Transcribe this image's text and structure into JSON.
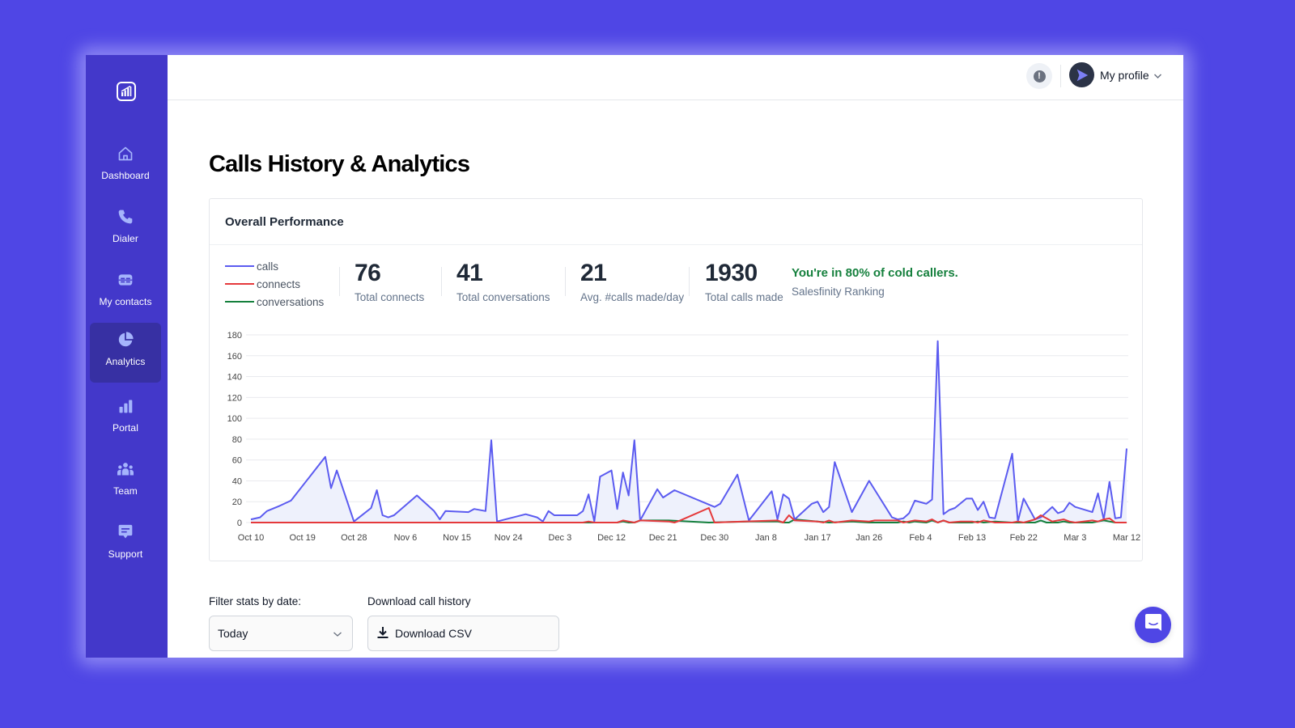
{
  "sidebar": {
    "logo": "salesfinity-logo",
    "items": [
      {
        "label": "Dashboard",
        "icon": "home-icon",
        "active": false
      },
      {
        "label": "Dialer",
        "icon": "phone-icon",
        "active": false
      },
      {
        "label": "My contacts",
        "icon": "contacts-icon",
        "active": false
      },
      {
        "label": "Analytics",
        "icon": "pie-chart-icon",
        "active": true
      },
      {
        "label": "Portal",
        "icon": "bar-chart-icon",
        "active": false
      },
      {
        "label": "Team",
        "icon": "team-icon",
        "active": false
      },
      {
        "label": "Support",
        "icon": "chat-icon",
        "active": false
      }
    ]
  },
  "header": {
    "alert_icon": "!",
    "profile_label": "My profile"
  },
  "page": {
    "title": "Calls History & Analytics"
  },
  "card": {
    "title": "Overall Performance",
    "legend": [
      {
        "label": "calls",
        "color": "#5B5BF0"
      },
      {
        "label": "connects",
        "color": "#E5393B"
      },
      {
        "label": "conversations",
        "color": "#15803D"
      }
    ],
    "stats": [
      {
        "value": "76",
        "caption": "Total connects"
      },
      {
        "value": "41",
        "caption": "Total conversations"
      },
      {
        "value": "21",
        "caption": "Avg. #calls made/day"
      },
      {
        "value": "1930",
        "caption": "Total calls made"
      }
    ],
    "ranking": {
      "message": "You're in 80% of cold callers.",
      "subtitle": "Salesfinity Ranking"
    }
  },
  "filters": {
    "date_label": "Filter stats by date:",
    "date_value": "Today",
    "download_label": "Download call history",
    "download_button": "Download CSV"
  },
  "chart_data": {
    "type": "line",
    "title": "Overall Performance",
    "xlabel": "",
    "ylabel": "",
    "ylim": [
      0,
      180
    ],
    "yticks": [
      0,
      20,
      40,
      60,
      80,
      100,
      120,
      140,
      160,
      180
    ],
    "xticks": [
      "Oct 10",
      "Oct 19",
      "Oct 28",
      "Nov 6",
      "Nov 15",
      "Nov 24",
      "Dec 3",
      "Dec 12",
      "Dec 21",
      "Dec 30",
      "Jan 8",
      "Jan 17",
      "Jan 26",
      "Feb 4",
      "Feb 13",
      "Feb 22",
      "Mar 3",
      "Mar 12"
    ],
    "grid": true,
    "legend_position": "top-left",
    "x_unit": "days since Oct 10",
    "series": [
      {
        "name": "calls",
        "color": "#5B5BF0",
        "fill": "#EEF1FC",
        "points": [
          [
            0,
            3
          ],
          [
            1.6,
            5
          ],
          [
            2.8,
            11
          ],
          [
            5,
            16
          ],
          [
            7,
            21
          ],
          [
            13,
            63
          ],
          [
            14,
            33
          ],
          [
            15,
            50
          ],
          [
            18,
            1
          ],
          [
            21,
            14
          ],
          [
            22,
            31
          ],
          [
            23,
            7
          ],
          [
            24,
            5
          ],
          [
            25,
            7
          ],
          [
            29,
            26
          ],
          [
            32,
            11
          ],
          [
            33,
            3
          ],
          [
            34,
            11
          ],
          [
            38,
            10
          ],
          [
            39,
            13
          ],
          [
            41,
            11
          ],
          [
            42,
            79
          ],
          [
            43,
            1
          ],
          [
            48,
            8
          ],
          [
            50,
            5
          ],
          [
            51,
            1
          ],
          [
            52,
            11
          ],
          [
            53,
            7
          ],
          [
            57,
            7
          ],
          [
            58,
            11
          ],
          [
            59,
            27
          ],
          [
            60,
            1
          ],
          [
            61,
            44
          ],
          [
            63,
            50
          ],
          [
            64,
            13
          ],
          [
            65,
            48
          ],
          [
            66,
            26
          ],
          [
            67,
            79
          ],
          [
            68,
            2
          ],
          [
            71,
            32
          ],
          [
            72,
            24
          ],
          [
            74,
            31
          ],
          [
            81,
            15
          ],
          [
            82,
            18
          ],
          [
            85,
            46
          ],
          [
            87,
            2
          ],
          [
            91,
            30
          ],
          [
            92,
            3
          ],
          [
            93,
            27
          ],
          [
            94,
            23
          ],
          [
            95,
            3
          ],
          [
            98,
            18
          ],
          [
            99,
            20
          ],
          [
            100,
            10
          ],
          [
            101,
            15
          ],
          [
            102,
            58
          ],
          [
            105,
            10
          ],
          [
            108,
            40
          ],
          [
            112,
            5
          ],
          [
            113,
            3
          ],
          [
            114,
            4
          ],
          [
            115,
            9
          ],
          [
            116,
            21
          ],
          [
            118,
            18
          ],
          [
            119,
            22
          ],
          [
            120,
            174
          ],
          [
            121,
            8
          ],
          [
            122,
            12
          ],
          [
            123,
            14
          ],
          [
            125,
            23
          ],
          [
            126,
            23
          ],
          [
            127,
            12
          ],
          [
            128,
            20
          ],
          [
            129,
            5
          ],
          [
            130,
            4
          ],
          [
            133,
            66
          ],
          [
            134,
            1
          ],
          [
            135,
            23
          ],
          [
            137,
            3
          ],
          [
            138,
            5
          ],
          [
            140,
            15
          ],
          [
            141,
            9
          ],
          [
            142,
            11
          ],
          [
            143,
            19
          ],
          [
            144,
            15
          ],
          [
            147,
            10
          ],
          [
            148,
            28
          ],
          [
            149,
            3
          ],
          [
            150,
            39
          ],
          [
            151,
            4
          ],
          [
            152,
            5
          ],
          [
            153,
            71
          ]
        ]
      },
      {
        "name": "connects",
        "color": "#E5393B",
        "points": [
          [
            0,
            0
          ],
          [
            40,
            0
          ],
          [
            58,
            0
          ],
          [
            59,
            1
          ],
          [
            60,
            0
          ],
          [
            64,
            0
          ],
          [
            65,
            2
          ],
          [
            66,
            1
          ],
          [
            67,
            0
          ],
          [
            68,
            2
          ],
          [
            73,
            1
          ],
          [
            74,
            0
          ],
          [
            75,
            2
          ],
          [
            80,
            14
          ],
          [
            81,
            0
          ],
          [
            86,
            1
          ],
          [
            92,
            2
          ],
          [
            93,
            0
          ],
          [
            94,
            7
          ],
          [
            95,
            2
          ],
          [
            99,
            1
          ],
          [
            100,
            0
          ],
          [
            101,
            2
          ],
          [
            102,
            0
          ],
          [
            105,
            2
          ],
          [
            108,
            1
          ],
          [
            109,
            2
          ],
          [
            113,
            2
          ],
          [
            114,
            0
          ],
          [
            115,
            1
          ],
          [
            116,
            2
          ],
          [
            118,
            1
          ],
          [
            119,
            3
          ],
          [
            120,
            0
          ],
          [
            121,
            2
          ],
          [
            122,
            0
          ],
          [
            124,
            1
          ],
          [
            126,
            1
          ],
          [
            127,
            0
          ],
          [
            128,
            2
          ],
          [
            129,
            1
          ],
          [
            130,
            0
          ],
          [
            133,
            0
          ],
          [
            134,
            1
          ],
          [
            135,
            0
          ],
          [
            137,
            3
          ],
          [
            138,
            7
          ],
          [
            139,
            4
          ],
          [
            140,
            1
          ],
          [
            141,
            2
          ],
          [
            142,
            3
          ],
          [
            143,
            1
          ],
          [
            144,
            0
          ],
          [
            147,
            2
          ],
          [
            148,
            1
          ],
          [
            149,
            3
          ],
          [
            150,
            4
          ],
          [
            151,
            0
          ],
          [
            153,
            0
          ]
        ]
      },
      {
        "name": "conversations",
        "color": "#15803D",
        "points": [
          [
            0,
            0
          ],
          [
            58,
            0
          ],
          [
            60,
            0
          ],
          [
            64,
            0
          ],
          [
            65,
            1
          ],
          [
            66,
            0
          ],
          [
            67,
            0
          ],
          [
            68,
            2
          ],
          [
            73,
            2
          ],
          [
            80,
            0
          ],
          [
            87,
            1
          ],
          [
            92,
            1
          ],
          [
            93,
            0
          ],
          [
            94,
            0
          ],
          [
            95,
            3
          ],
          [
            99,
            1
          ],
          [
            101,
            0
          ],
          [
            105,
            1
          ],
          [
            108,
            0
          ],
          [
            113,
            0
          ],
          [
            114,
            1
          ],
          [
            115,
            0
          ],
          [
            116,
            1
          ],
          [
            118,
            0
          ],
          [
            119,
            2
          ],
          [
            120,
            0
          ],
          [
            121,
            2
          ],
          [
            122,
            0
          ],
          [
            126,
            0
          ],
          [
            127,
            1
          ],
          [
            128,
            0
          ],
          [
            130,
            1
          ],
          [
            133,
            0
          ],
          [
            137,
            0
          ],
          [
            138,
            2
          ],
          [
            139,
            0
          ],
          [
            141,
            0
          ],
          [
            142,
            1
          ],
          [
            143,
            0
          ],
          [
            147,
            0
          ],
          [
            148,
            1
          ],
          [
            149,
            2
          ],
          [
            150,
            1
          ],
          [
            151,
            0
          ],
          [
            153,
            0
          ]
        ]
      }
    ]
  }
}
